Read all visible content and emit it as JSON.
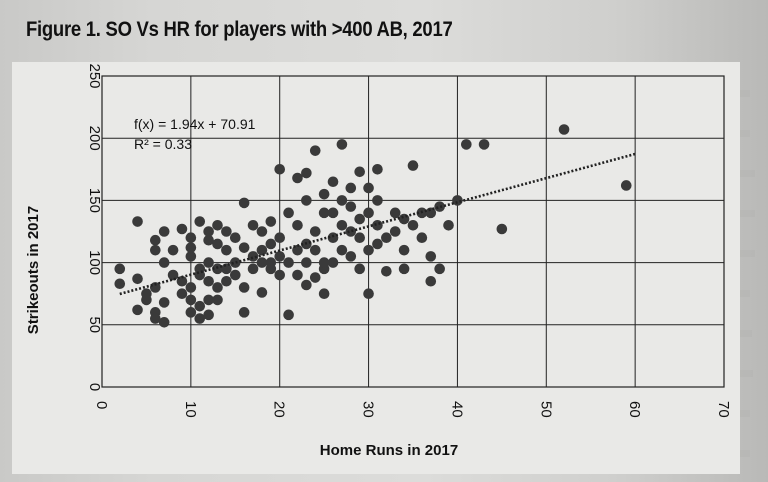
{
  "figure_title": "Figure 1. SO Vs HR for players with >400 AB, 2017",
  "chart_data": {
    "type": "scatter",
    "title": "",
    "xlabel": "Home Runs in 2017",
    "ylabel": "Strikeouts in 2017",
    "xlim": [
      0,
      70
    ],
    "ylim": [
      0,
      250
    ],
    "x_ticks": [
      "0",
      "10",
      "20",
      "30",
      "40",
      "50",
      "60",
      "70"
    ],
    "y_ticks": [
      "0",
      "50",
      "100",
      "150",
      "200",
      "250"
    ],
    "grid": true,
    "trendline": {
      "type": "linear",
      "slope": 1.94,
      "intercept": 70.91,
      "equation_label": "f(x) = 1.94x + 70.91",
      "r2_label": "R² = 0.33",
      "x_range": [
        2,
        60
      ]
    },
    "colors": {
      "points": "#3a3a3a",
      "trendline": "#222222",
      "grid": "#222222"
    },
    "points": [
      [
        2,
        95
      ],
      [
        2,
        83
      ],
      [
        4,
        133
      ],
      [
        4,
        62
      ],
      [
        4,
        87
      ],
      [
        5,
        75
      ],
      [
        5,
        70
      ],
      [
        6,
        80
      ],
      [
        6,
        60
      ],
      [
        6,
        55
      ],
      [
        6,
        110
      ],
      [
        6,
        118
      ],
      [
        7,
        68
      ],
      [
        7,
        52
      ],
      [
        7,
        100
      ],
      [
        7,
        125
      ],
      [
        8,
        90
      ],
      [
        8,
        110
      ],
      [
        9,
        127
      ],
      [
        9,
        85
      ],
      [
        9,
        75
      ],
      [
        10,
        60
      ],
      [
        10,
        70
      ],
      [
        10,
        80
      ],
      [
        10,
        105
      ],
      [
        10,
        112
      ],
      [
        10,
        120
      ],
      [
        11,
        55
      ],
      [
        11,
        65
      ],
      [
        11,
        90
      ],
      [
        11,
        95
      ],
      [
        11,
        133
      ],
      [
        12,
        58
      ],
      [
        12,
        70
      ],
      [
        12,
        85
      ],
      [
        12,
        100
      ],
      [
        12,
        118
      ],
      [
        12,
        125
      ],
      [
        13,
        70
      ],
      [
        13,
        80
      ],
      [
        13,
        95
      ],
      [
        13,
        115
      ],
      [
        13,
        130
      ],
      [
        14,
        85
      ],
      [
        14,
        95
      ],
      [
        14,
        110
      ],
      [
        14,
        125
      ],
      [
        15,
        90
      ],
      [
        15,
        100
      ],
      [
        15,
        120
      ],
      [
        16,
        60
      ],
      [
        16,
        80
      ],
      [
        16,
        112
      ],
      [
        16,
        148
      ],
      [
        17,
        95
      ],
      [
        17,
        105
      ],
      [
        17,
        130
      ],
      [
        18,
        76
      ],
      [
        18,
        100
      ],
      [
        18,
        110
      ],
      [
        18,
        125
      ],
      [
        19,
        95
      ],
      [
        19,
        100
      ],
      [
        19,
        115
      ],
      [
        19,
        133
      ],
      [
        20,
        90
      ],
      [
        20,
        105
      ],
      [
        20,
        120
      ],
      [
        20,
        175
      ],
      [
        21,
        58
      ],
      [
        21,
        100
      ],
      [
        21,
        140
      ],
      [
        22,
        90
      ],
      [
        22,
        110
      ],
      [
        22,
        130
      ],
      [
        22,
        168
      ],
      [
        23,
        82
      ],
      [
        23,
        100
      ],
      [
        23,
        115
      ],
      [
        23,
        150
      ],
      [
        23,
        172
      ],
      [
        24,
        88
      ],
      [
        24,
        110
      ],
      [
        24,
        125
      ],
      [
        24,
        190
      ],
      [
        25,
        75
      ],
      [
        25,
        95
      ],
      [
        25,
        100
      ],
      [
        25,
        140
      ],
      [
        25,
        155
      ],
      [
        26,
        100
      ],
      [
        26,
        120
      ],
      [
        26,
        140
      ],
      [
        26,
        165
      ],
      [
        27,
        110
      ],
      [
        27,
        130
      ],
      [
        27,
        150
      ],
      [
        27,
        195
      ],
      [
        28,
        105
      ],
      [
        28,
        125
      ],
      [
        28,
        145
      ],
      [
        28,
        160
      ],
      [
        29,
        95
      ],
      [
        29,
        120
      ],
      [
        29,
        135
      ],
      [
        29,
        173
      ],
      [
        30,
        75
      ],
      [
        30,
        110
      ],
      [
        30,
        140
      ],
      [
        30,
        160
      ],
      [
        31,
        115
      ],
      [
        31,
        130
      ],
      [
        31,
        150
      ],
      [
        31,
        175
      ],
      [
        32,
        93
      ],
      [
        32,
        120
      ],
      [
        33,
        125
      ],
      [
        33,
        140
      ],
      [
        34,
        95
      ],
      [
        34,
        110
      ],
      [
        34,
        135
      ],
      [
        35,
        130
      ],
      [
        35,
        178
      ],
      [
        36,
        120
      ],
      [
        36,
        140
      ],
      [
        37,
        85
      ],
      [
        37,
        105
      ],
      [
        37,
        140
      ],
      [
        38,
        95
      ],
      [
        38,
        145
      ],
      [
        39,
        130
      ],
      [
        40,
        150
      ],
      [
        41,
        195
      ],
      [
        43,
        195
      ],
      [
        45,
        127
      ],
      [
        52,
        207
      ],
      [
        59,
        162
      ]
    ]
  }
}
